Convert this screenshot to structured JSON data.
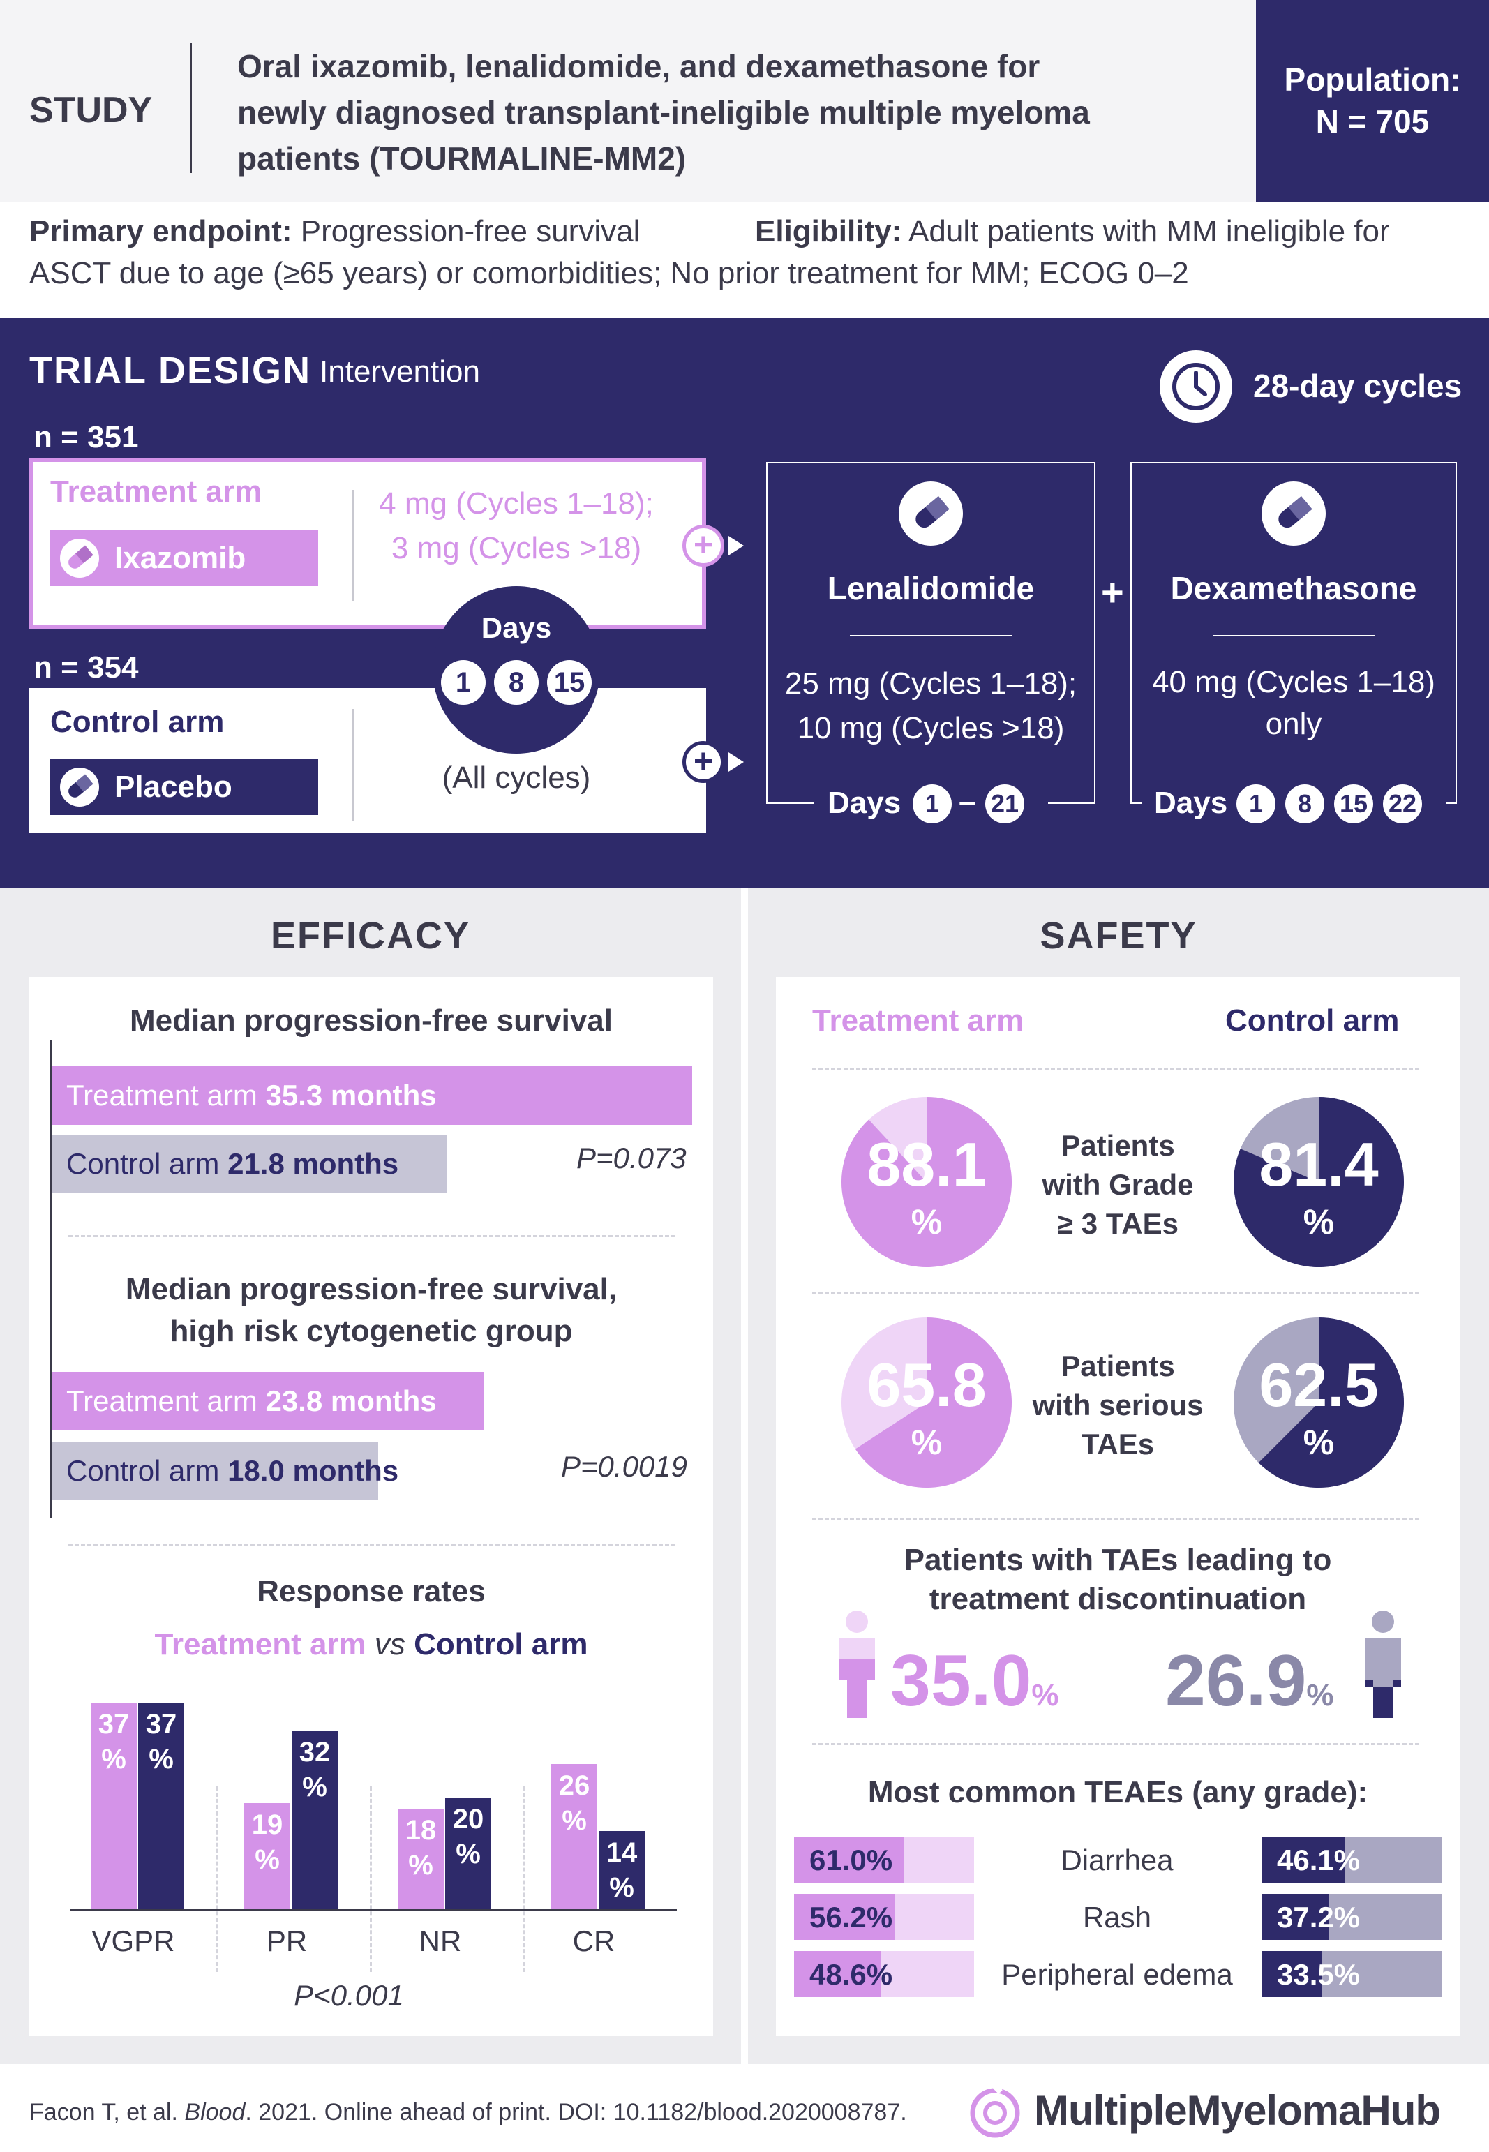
{
  "header": {
    "study_label": "STUDY",
    "title_line1": "Oral ixazomib, lenalidomide, and dexamethasone for",
    "title_line2": "newly diagnosed transplant-ineligible multiple myeloma",
    "title_line3": "patients (TOURMALINE-MM2)",
    "population_label": "Population:",
    "population_value": "N = 705"
  },
  "endpoints": {
    "primary_label": "Primary endpoint:",
    "primary_value": "Progression-free survival",
    "eligibility_label": "Eligibility:",
    "eligibility_value_line1": "Adult patients with MM ineligible for",
    "eligibility_value_line2": "ASCT due to age (≥65 years) or comorbidities; No prior treatment for MM; ECOG 0–2"
  },
  "trial_design": {
    "title": "TRIAL DESIGN",
    "subtitle": "Intervention",
    "cycles": "28-day cycles",
    "treatment_n": "n = 351",
    "treatment_arm_label": "Treatment arm",
    "treatment_drug": "Ixazomib",
    "treatment_dose_line1": "4 mg (Cycles 1–18);",
    "treatment_dose_line2": "3 mg (Cycles >18)",
    "control_n": "n = 354",
    "control_arm_label": "Control arm",
    "control_drug": "Placebo",
    "days_label": "Days",
    "days": [
      "1",
      "8",
      "15"
    ],
    "all_cycles": "(All cycles)",
    "plus": "+",
    "lenalidomide": {
      "name": "Lenalidomide",
      "dose_line1": "25 mg (Cycles 1–18);",
      "dose_line2": "10 mg (Cycles >18)",
      "days_label": "Days",
      "day_start": "1",
      "dash": "–",
      "day_end": "21"
    },
    "dexamethasone": {
      "name": "Dexamethasone",
      "dose_line1": "40 mg (Cycles 1–18)",
      "dose_line2": "only",
      "days_label": "Days",
      "days": [
        "1",
        "8",
        "15",
        "22"
      ]
    }
  },
  "efficacy": {
    "title": "EFFICACY",
    "pfs": {
      "title": "Median progression-free survival",
      "treatment_label": "Treatment arm ",
      "treatment_value": "35.3 months",
      "control_label": "Control arm ",
      "control_value": "21.8 months",
      "p": "P=0.073"
    },
    "pfs_hr": {
      "title_line1": "Median progression-free survival,",
      "title_line2": "high risk cytogenetic group",
      "treatment_label": "Treatment arm ",
      "treatment_value": "23.8 months",
      "control_label": "Control arm ",
      "control_value": "18.0 months",
      "p": "P=0.0019"
    },
    "response": {
      "title": "Response rates",
      "legend_treatment": "Treatment arm",
      "legend_vs": " vs ",
      "legend_control": "Control arm",
      "p": "P<0.001"
    }
  },
  "chart_data": {
    "type": "bar",
    "title": "Response rates",
    "categories": [
      "VGPR",
      "PR",
      "NR",
      "CR"
    ],
    "series": [
      {
        "name": "Treatment arm",
        "values": [
          37,
          19,
          18,
          26
        ],
        "color": "#d493e8"
      },
      {
        "name": "Control arm",
        "values": [
          37,
          32,
          20,
          14
        ],
        "color": "#2e2a6a"
      }
    ],
    "unit": "%",
    "ylim": [
      0,
      40
    ]
  },
  "safety": {
    "title": "SAFETY",
    "treatment_arm": "Treatment arm",
    "control_arm": "Control arm",
    "grade3": {
      "label_line1": "Patients",
      "label_line2": "with Grade",
      "label_line3": "≥ 3 TAEs",
      "treatment_value": "88.1",
      "control_value": "81.4",
      "treatment_fraction": 0.881,
      "control_fraction": 0.814
    },
    "serious": {
      "label_line1": "Patients",
      "label_line2": "with serious",
      "label_line3": "TAEs",
      "treatment_value": "65.8",
      "control_value": "62.5",
      "treatment_fraction": 0.658,
      "control_fraction": 0.625
    },
    "percent": "%",
    "discontinuation": {
      "title_line1": "Patients with TAEs leading to",
      "title_line2": "treatment discontinuation",
      "treatment_value": "35.0",
      "control_value": "26.9"
    },
    "teaes": {
      "title": "Most common TEAEs (any grade):",
      "rows": [
        {
          "name": "Diarrhea",
          "treatment": "61.0%",
          "control": "46.1%",
          "treatment_fraction": 0.61,
          "control_fraction": 0.461
        },
        {
          "name": "Rash",
          "treatment": "56.2%",
          "control": "37.2%",
          "treatment_fraction": 0.562,
          "control_fraction": 0.372
        },
        {
          "name": "Peripheral edema",
          "treatment": "48.6%",
          "control": "33.5%",
          "treatment_fraction": 0.486,
          "control_fraction": 0.335
        }
      ]
    }
  },
  "footer": {
    "citation_pre": "Facon T, et al. ",
    "citation_journal": "Blood",
    "citation_post": ". 2021. Online ahead of print. DOI: 10.1182/blood.2020008787.",
    "brand": "MultipleMyelomaHub"
  },
  "colors": {
    "dark": "#2e2a6a",
    "lavender": "#d493e8",
    "gray": "#a9a7c2"
  }
}
